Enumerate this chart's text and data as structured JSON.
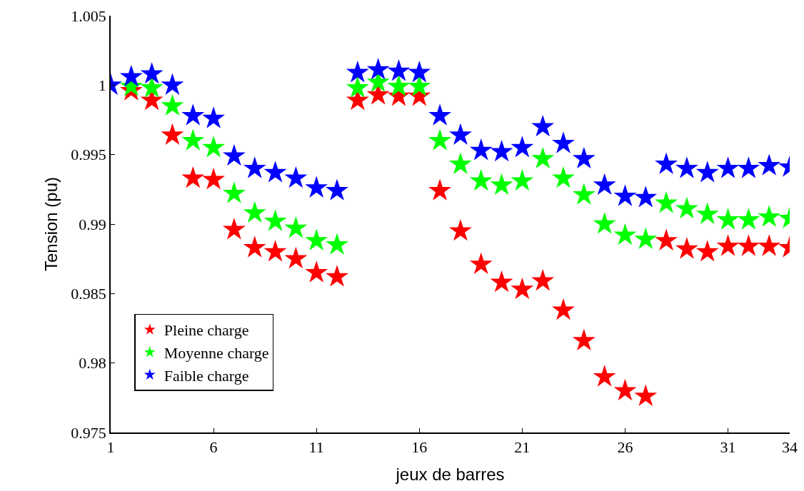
{
  "chart_data": {
    "type": "scatter",
    "xlabel": "jeux de barres",
    "ylabel": "Tension (pu)",
    "x": [
      1,
      2,
      3,
      4,
      5,
      6,
      7,
      8,
      9,
      10,
      11,
      12,
      13,
      14,
      15,
      16,
      17,
      18,
      19,
      20,
      21,
      22,
      23,
      24,
      25,
      26,
      27,
      28,
      29,
      30,
      31,
      32,
      33,
      34
    ],
    "xlim": [
      1,
      34
    ],
    "xticks": [
      1,
      6,
      11,
      16,
      21,
      26,
      31,
      34
    ],
    "ylim": [
      0.975,
      1.005
    ],
    "yticks": [
      0.975,
      0.98,
      0.985,
      0.99,
      0.995,
      1,
      1.005
    ],
    "marker": "star",
    "legend": "bottom left",
    "grid": false,
    "series": [
      {
        "name": "Pleine charge",
        "color": "#ff0000",
        "values": [
          null,
          0.9996,
          0.9989,
          0.9964,
          0.9933,
          0.9932,
          0.9896,
          0.9883,
          0.988,
          0.9875,
          0.9865,
          0.9862,
          0.9989,
          0.9993,
          0.9992,
          0.9992,
          0.9924,
          0.9895,
          0.9871,
          0.9858,
          0.9853,
          0.9859,
          0.9838,
          0.9816,
          0.979,
          0.978,
          0.9776,
          0.9888,
          0.9882,
          0.988,
          0.9884,
          0.9884,
          0.9884,
          0.9883
        ]
      },
      {
        "name": "Moyenne charge",
        "color": "#00ff00",
        "values": [
          null,
          0.9999,
          0.9998,
          0.9985,
          0.996,
          0.9955,
          0.9922,
          0.9908,
          0.9902,
          0.9897,
          0.9888,
          0.9885,
          0.9998,
          1.0002,
          0.9999,
          0.9999,
          0.996,
          0.9943,
          0.9931,
          0.9928,
          0.9931,
          0.9947,
          0.9933,
          0.9921,
          0.99,
          0.9892,
          0.9889,
          0.9915,
          0.9911,
          0.9907,
          0.9903,
          0.9903,
          0.9905,
          0.9904
        ]
      },
      {
        "name": "Faible charge",
        "color": "#0000ff",
        "values": [
          1.0,
          1.0006,
          1.0008,
          1.0,
          0.9978,
          0.9976,
          0.9949,
          0.994,
          0.9937,
          0.9933,
          0.9926,
          0.9924,
          1.0009,
          1.0011,
          1.001,
          1.0009,
          0.9978,
          0.9964,
          0.9953,
          0.9952,
          0.9955,
          0.997,
          0.9958,
          0.9947,
          0.9928,
          0.992,
          0.9919,
          0.9943,
          0.994,
          0.9937,
          0.994,
          0.994,
          0.9942,
          0.9941
        ]
      }
    ]
  }
}
